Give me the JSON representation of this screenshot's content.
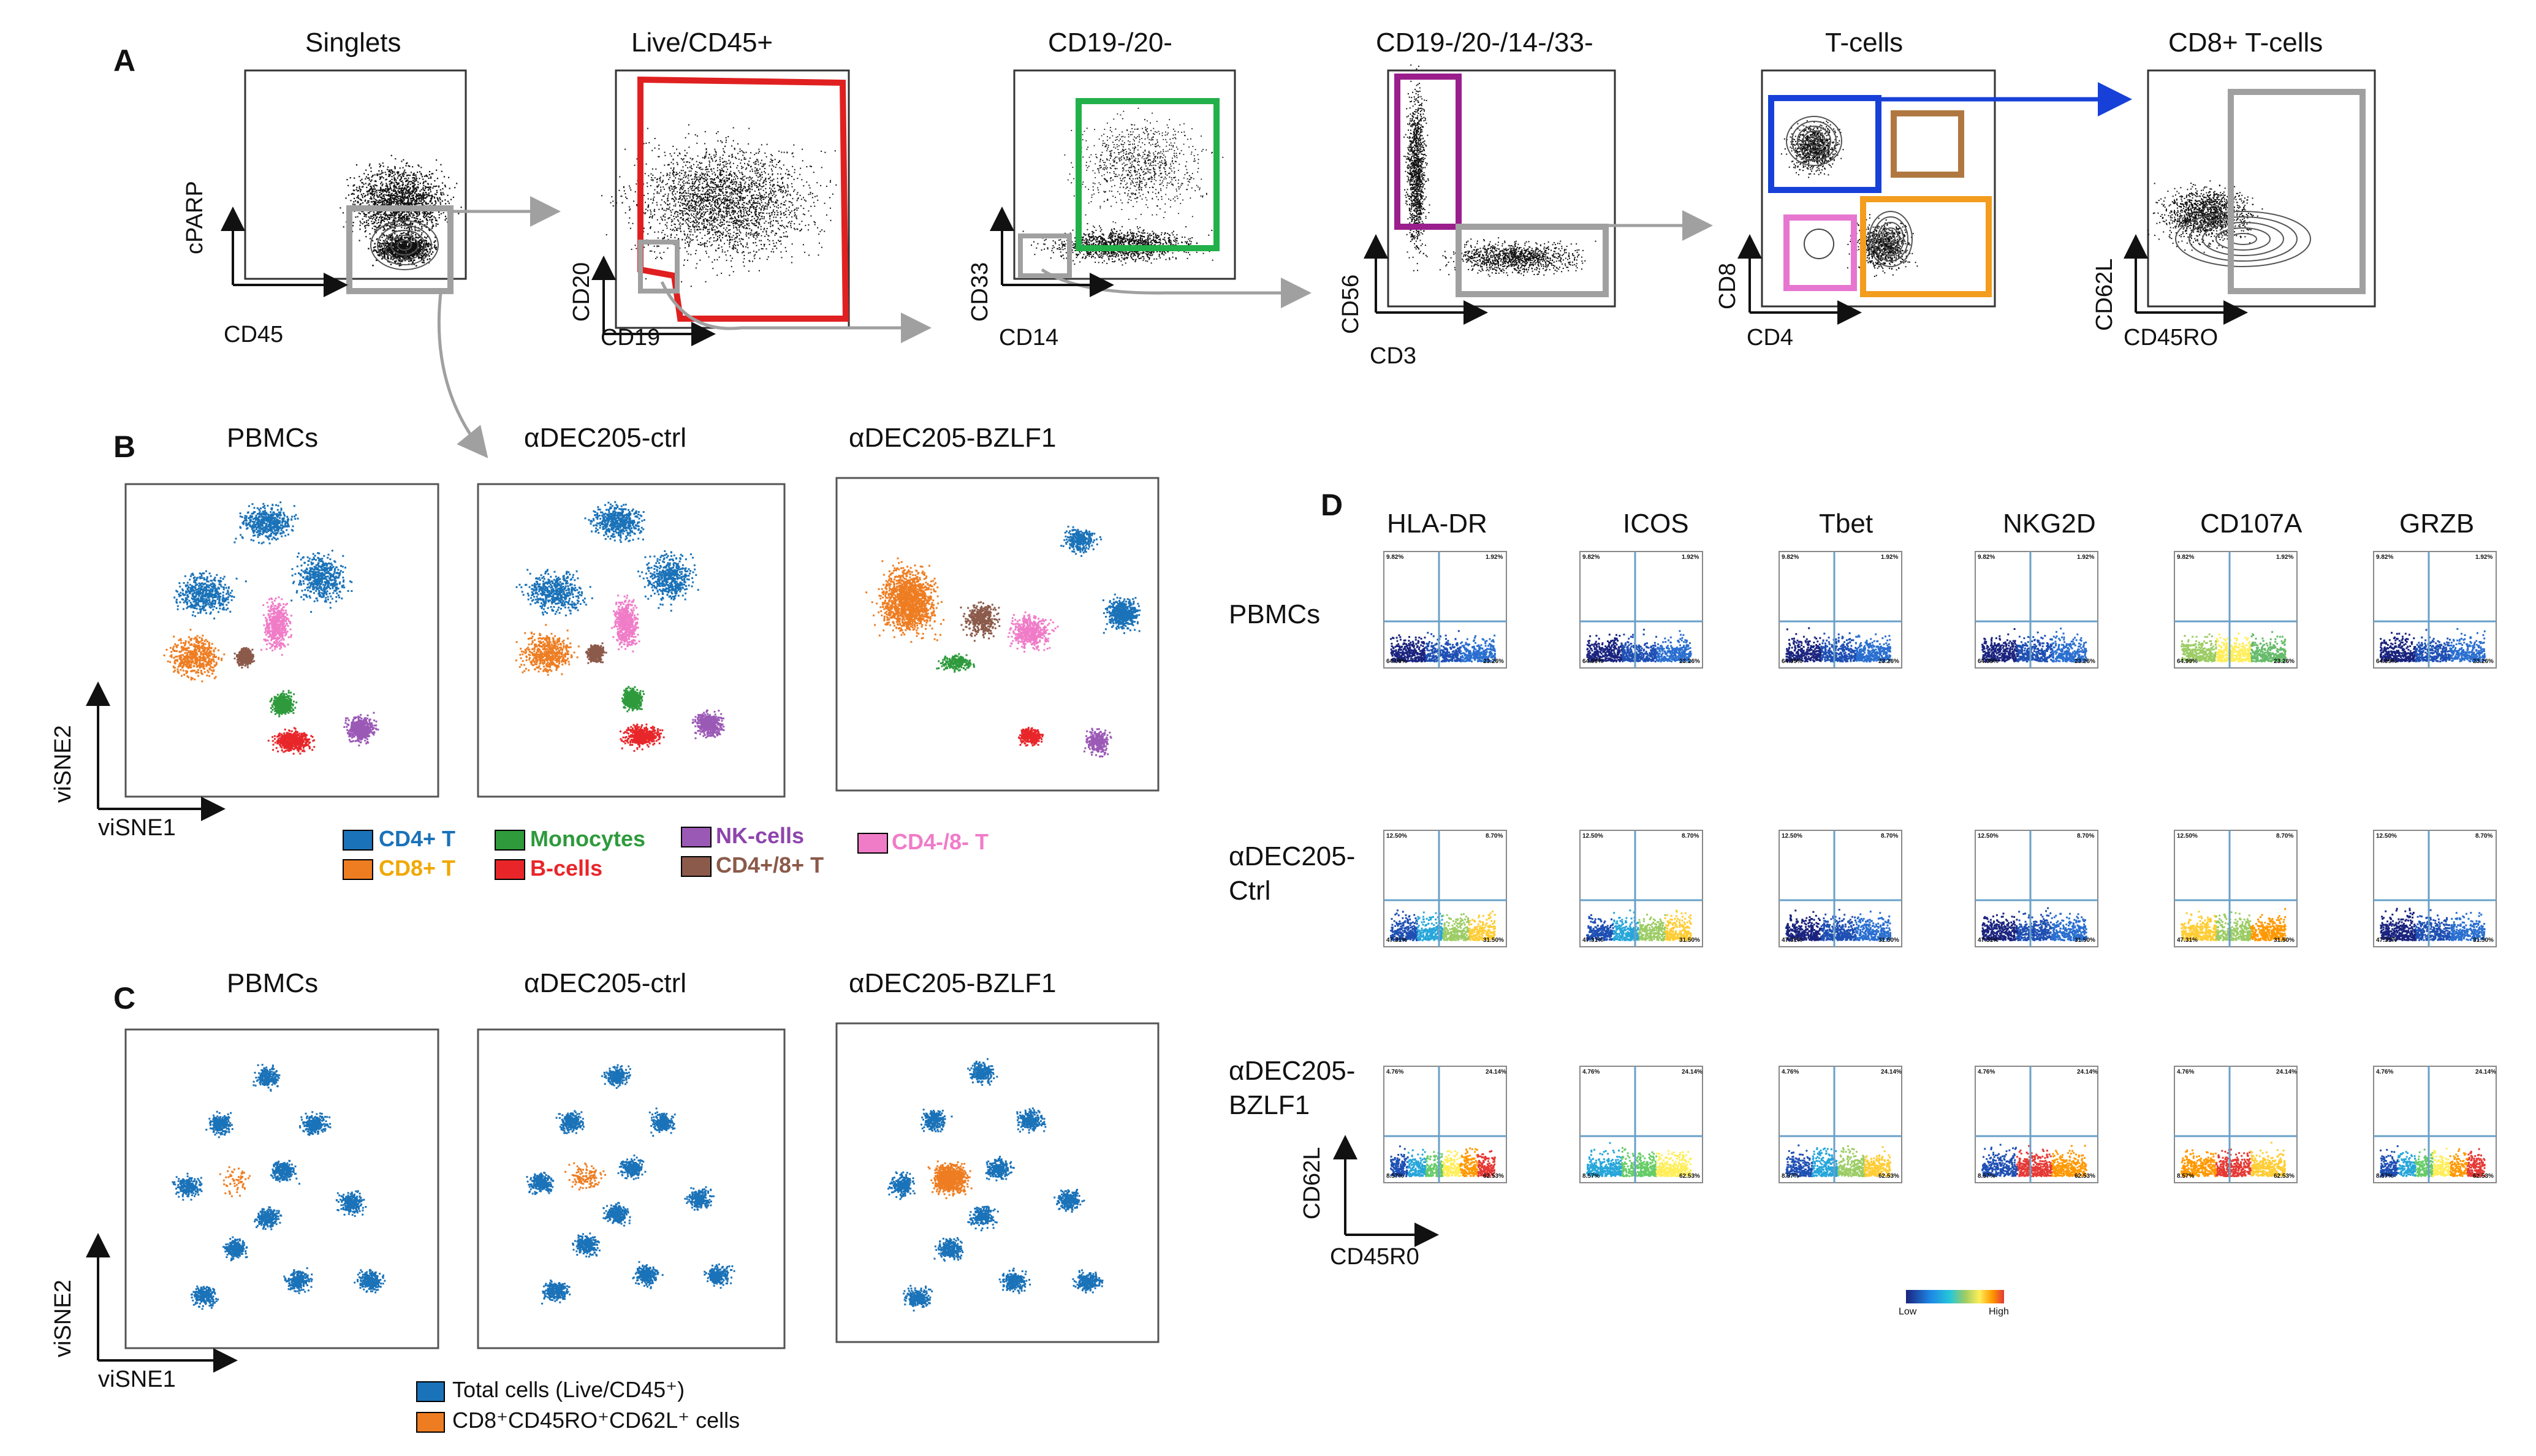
{
  "panelA": {
    "label": "A",
    "plots": [
      {
        "title": "Singlets",
        "xlabel": "CD45",
        "ylabel": "cPARP"
      },
      {
        "title": "Live/CD45+",
        "xlabel": "CD19",
        "ylabel": "CD20"
      },
      {
        "title": "CD19-/20-",
        "xlabel": "CD14",
        "ylabel": "CD33"
      },
      {
        "title": "CD19-/20-/14-/33-",
        "xlabel": "CD3",
        "ylabel": "CD56"
      },
      {
        "title": "T-cells",
        "xlabel": "CD4",
        "ylabel": "CD8"
      },
      {
        "title": "CD8+ T-cells",
        "xlabel": "CD45RO",
        "ylabel": "CD62L"
      }
    ]
  },
  "panelB": {
    "label": "B",
    "titles": [
      "PBMCs",
      "αDEC205-ctrl",
      "αDEC205-BZLF1"
    ],
    "xlabel": "viSNE1",
    "ylabel": "viSNE2",
    "legend": [
      {
        "label": "CD4+ T",
        "color": "#1a72b8",
        "text": "#1a72b8"
      },
      {
        "label": "CD8+ T",
        "color": "#ee7d22",
        "text": "#f0a800"
      },
      {
        "label": "Monocytes",
        "color": "#2e9a3c",
        "text": "#2e9a3c"
      },
      {
        "label": "B-cells",
        "color": "#e8262a",
        "text": "#e8262a"
      },
      {
        "label": "NK-cells",
        "color": "#9b59b6",
        "text": "#8e44ad"
      },
      {
        "label": "CD4+/8+ T",
        "color": "#8b5a4a",
        "text": "#8b5a4a"
      },
      {
        "label": "CD4-/8- T",
        "color": "#f07cc8",
        "text": "#f07cc8"
      }
    ]
  },
  "panelC": {
    "label": "C",
    "titles": [
      "PBMCs",
      "αDEC205-ctrl",
      "αDEC205-BZLF1"
    ],
    "xlabel": "viSNE1",
    "ylabel": "viSNE2",
    "legend": [
      {
        "label": "Total cells (Live/CD45⁺)",
        "color": "#1a72b8"
      },
      {
        "label": "CD8⁺CD45RO⁺CD62L⁺ cells",
        "color": "#ee7d22"
      }
    ]
  },
  "panelD": {
    "label": "D",
    "columns": [
      "HLA-DR",
      "ICOS",
      "Tbet",
      "NKG2D",
      "CD107A",
      "GRZB"
    ],
    "rows": [
      {
        "label": "PBMCs",
        "quadrants": [
          "9.82%",
          "1.92%",
          "64.99%",
          "23.26%"
        ]
      },
      {
        "label": "αDEC205-Ctrl",
        "quadrants": [
          "12.50%",
          "8.70%",
          "47.31%",
          "31.50%"
        ]
      },
      {
        "label": "αDEC205-BZLF1",
        "quadrants": [
          "4.76%",
          "24.14%",
          "8.57%",
          "62.53%"
        ]
      }
    ],
    "xlabel": "CD45R0",
    "ylabel": "CD62L",
    "colorbar": {
      "low": "Low",
      "high": "High"
    }
  },
  "colors": {
    "gate_grey": "#a0a0a0",
    "gate_red": "#e02020",
    "gate_green": "#22b04a",
    "gate_purple": "#9a1e8c",
    "gate_blue": "#1640d8",
    "gate_brown": "#b07840",
    "gate_pink": "#e676d0",
    "gate_orange": "#f39c1e",
    "quad_line": "#6aa0c8"
  }
}
